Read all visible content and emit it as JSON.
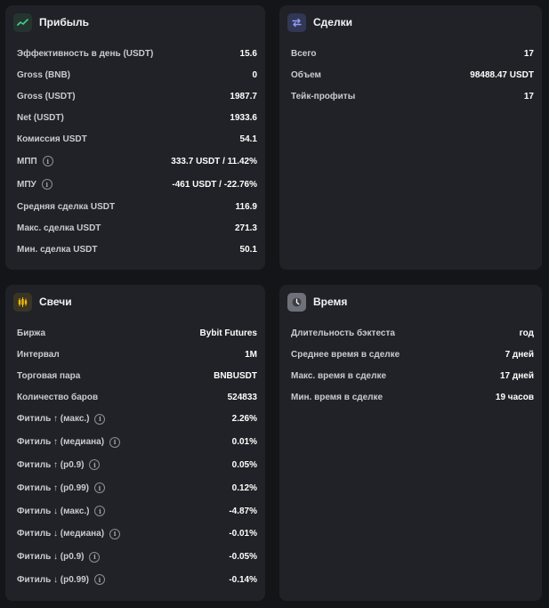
{
  "profit": {
    "title": "Прибыль",
    "rows": [
      {
        "label": "Эффективность в день (USDT)",
        "value": "15.6"
      },
      {
        "label": "Gross (BNB)",
        "value": "0"
      },
      {
        "label": "Gross (USDT)",
        "value": "1987.7"
      },
      {
        "label": "Net (USDT)",
        "value": "1933.6"
      },
      {
        "label": "Комиссия USDT",
        "value": "54.1"
      },
      {
        "label": "МПП",
        "value": "333.7 USDT / 11.42%"
      },
      {
        "label": "МПУ",
        "value": "-461 USDT / -22.76%"
      },
      {
        "label": "Средняя сделка USDT",
        "value": "116.9"
      },
      {
        "label": "Макс. сделка USDT",
        "value": "271.3"
      },
      {
        "label": "Мин. сделка USDT",
        "value": "50.1"
      }
    ]
  },
  "deals": {
    "title": "Сделки",
    "rows": [
      {
        "label": "Всего",
        "value": "17"
      },
      {
        "label": "Объем",
        "value": "98488.47 USDT"
      },
      {
        "label": "Тейк-профиты",
        "value": "17"
      }
    ]
  },
  "candles": {
    "title": "Свечи",
    "rows": [
      {
        "label": "Биржа",
        "value": "Bybit Futures"
      },
      {
        "label": "Интервал",
        "value": "1M"
      },
      {
        "label": "Торговая пара",
        "value": "BNBUSDT"
      },
      {
        "label": "Количество баров",
        "value": "524833"
      }
    ],
    "wick_rows": [
      {
        "label": "Фитиль ↑ (макс.)",
        "value": "2.26%"
      },
      {
        "label": "Фитиль ↑ (медиана)",
        "value": "0.01%"
      },
      {
        "label": "Фитиль ↑ (p0.9)",
        "value": "0.05%"
      },
      {
        "label": "Фитиль ↑ (p0.99)",
        "value": "0.12%"
      },
      {
        "label": "Фитиль ↓ (макс.)",
        "value": "-4.87%"
      },
      {
        "label": "Фитиль ↓ (медиана)",
        "value": "-0.01%"
      },
      {
        "label": "Фитиль ↓ (p0.9)",
        "value": "-0.05%"
      },
      {
        "label": "Фитиль ↓ (p0.99)",
        "value": "-0.14%"
      }
    ]
  },
  "time": {
    "title": "Время",
    "rows": [
      {
        "label": "Длительность бэктеста",
        "value": "год"
      },
      {
        "label": "Среднее время в сделке",
        "value": "7 дней"
      },
      {
        "label": "Макс. время в сделке",
        "value": "17 дней"
      },
      {
        "label": "Мин. время в сделке",
        "value": "19 часов"
      }
    ]
  },
  "icons": {
    "profit": "trend-line-icon",
    "deals": "swap-arrows-icon",
    "candles": "candlestick-icon",
    "time": "clock-icon",
    "info": "info-icon"
  },
  "colors": {
    "profit_icon": "#3fd18b",
    "deals_icon": "#7c8cff",
    "candles_icon": "#f0b90b",
    "time_icon": "#ffffff"
  }
}
